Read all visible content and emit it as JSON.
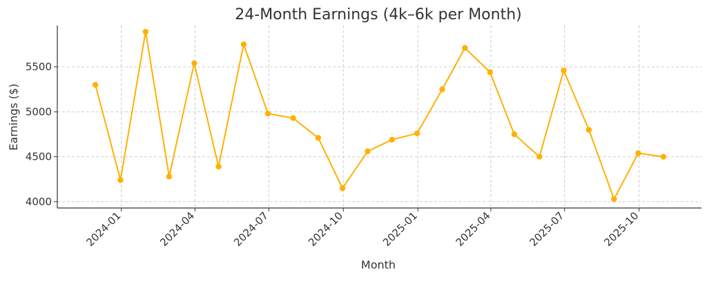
{
  "chart_data": {
    "type": "line",
    "title": "24-Month Earnings (4k–6k per Month)",
    "xlabel": "Month",
    "ylabel": "Earnings ($)",
    "ylim": [
      3930,
      5960
    ],
    "yticks": [
      4000,
      4500,
      5000,
      5500
    ],
    "xlim": [
      "2023-10-14",
      "2025-12-17"
    ],
    "xticks": [
      "2024-01",
      "2024-04",
      "2024-07",
      "2024-10",
      "2025-01",
      "2025-04",
      "2025-07",
      "2025-10"
    ],
    "grid": true,
    "line_color": "#FFB000",
    "series": [
      {
        "x": [
          "2023-11-30",
          "2023-12-31",
          "2024-01-31",
          "2024-02-29",
          "2024-03-31",
          "2024-04-30",
          "2024-05-31",
          "2024-06-30",
          "2024-07-31",
          "2024-08-31",
          "2024-09-30",
          "2024-10-31",
          "2024-11-30",
          "2024-12-31",
          "2025-01-31",
          "2025-02-28",
          "2025-03-31",
          "2025-04-30",
          "2025-05-31",
          "2025-06-30",
          "2025-07-31",
          "2025-08-31",
          "2025-09-30",
          "2025-10-31"
        ],
        "values": [
          5300,
          4240,
          5890,
          4280,
          5540,
          4390,
          5750,
          4980,
          4930,
          4710,
          4150,
          4560,
          4690,
          4760,
          5250,
          5710,
          5440,
          4750,
          4500,
          5460,
          4800,
          4030,
          4540,
          4500
        ]
      }
    ]
  }
}
